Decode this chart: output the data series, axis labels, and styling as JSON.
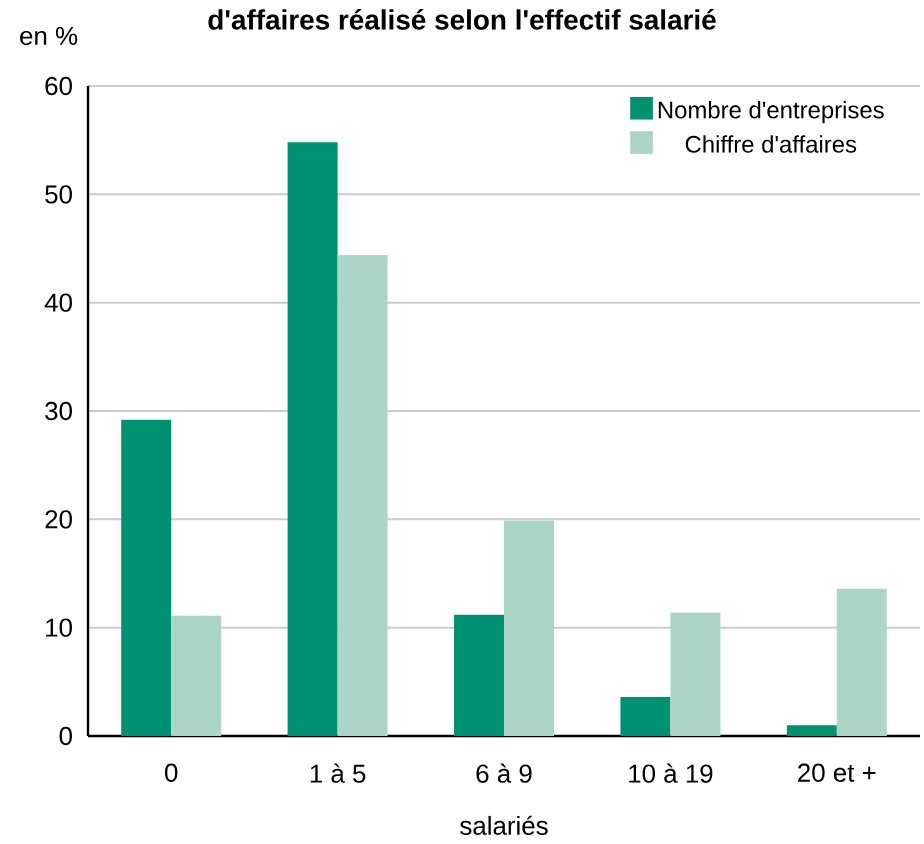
{
  "chart_data": {
    "type": "bar",
    "title": "d'affaires réalisé selon l'effectif salarié",
    "ylabel": "en %",
    "xlabel": "salariés",
    "categories": [
      "0",
      "1 à 5",
      "6 à 9",
      "10 à 19",
      "20 et +"
    ],
    "series": [
      {
        "name": "Nombre d'entreprises",
        "color": "#009270",
        "values": [
          29.2,
          54.8,
          11.2,
          3.6,
          1.0
        ]
      },
      {
        "name": "Chiffre d'affaires",
        "color": "#acd5ca",
        "values": [
          11.1,
          44.4,
          19.9,
          11.4,
          13.6
        ]
      }
    ],
    "ylim": [
      0,
      60
    ],
    "yticks": [
      0,
      10,
      20,
      30,
      40,
      50,
      60
    ],
    "grid": "y",
    "legend": "top right"
  }
}
